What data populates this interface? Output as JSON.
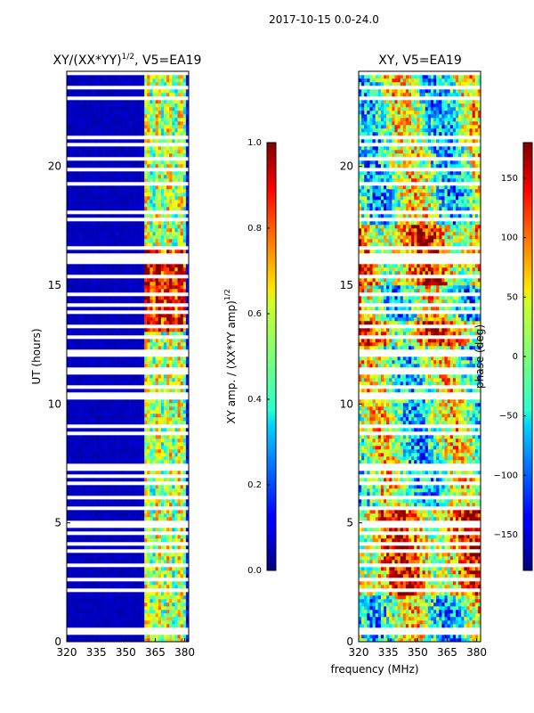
{
  "suptitle": "2017-10-15 0.0-24.0",
  "chart_data": [
    {
      "type": "heatmap",
      "title_main": "XY/(XX*YY)",
      "title_exp": "1/2",
      "title_rest": ", V5=EA19",
      "ylabel": "UT (hours)",
      "xlabel": "",
      "xlim": [
        320,
        382
      ],
      "ylim": [
        0,
        24
      ],
      "xticks": [
        320,
        335,
        350,
        365,
        380
      ],
      "yticks": [
        0,
        5,
        10,
        15,
        20
      ],
      "colorbar": {
        "label": "XY amp. / (XX*YY amp)",
        "label_exp": "1/2",
        "range": [
          0.0,
          1.0
        ],
        "ticks": [
          "0.0",
          "0.2",
          "0.4",
          "0.6",
          "0.8",
          "1.0"
        ],
        "tick_values": [
          0.0,
          0.2,
          0.4,
          0.6,
          0.8,
          1.0
        ]
      },
      "content": "normalized XY amplitude, near 0 below ~359 MHz; bands of 0.3-0.9 between ~359-382 MHz, strongest around UT 13-16"
    },
    {
      "type": "heatmap",
      "title": "XY, V5=EA19",
      "xlabel": "frequency (MHz)",
      "ylabel": "",
      "xlim": [
        320,
        382
      ],
      "ylim": [
        0,
        24
      ],
      "xticks": [
        320,
        335,
        350,
        365,
        380
      ],
      "yticks": [
        0,
        5,
        10,
        15,
        20
      ],
      "colorbar": {
        "label": "phase (deg)",
        "range": [
          -180,
          180
        ],
        "ticks": [
          "150",
          "100",
          "50",
          "0",
          "−50",
          "−100",
          "−150"
        ],
        "tick_values": [
          150,
          100,
          50,
          0,
          -50,
          -100,
          -150
        ]
      },
      "content": "XY phase varying across full range; orange/red (~100-150 deg) near UT 2-5 and 15-17, cyan/green elsewhere"
    }
  ]
}
